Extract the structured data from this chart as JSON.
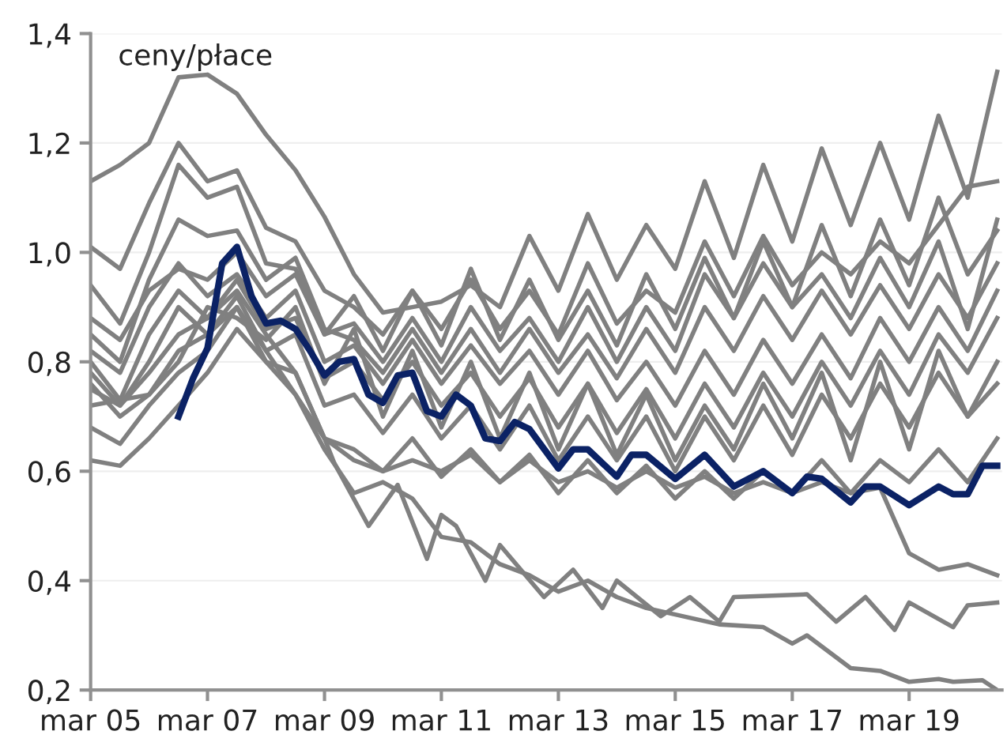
{
  "chart_data": {
    "type": "line",
    "ylabel": "ceny/płace",
    "x": [
      "2005-03",
      "2005-09",
      "2006-03",
      "2006-09",
      "2007-03",
      "2007-09",
      "2008-03",
      "2008-09",
      "2009-03",
      "2009-09",
      "2010-03",
      "2010-09",
      "2011-03",
      "2011-09",
      "2012-03",
      "2012-09",
      "2013-03",
      "2013-09",
      "2014-03",
      "2014-09",
      "2015-03",
      "2015-09",
      "2016-03",
      "2016-09",
      "2017-03",
      "2017-09",
      "2018-03",
      "2018-09",
      "2019-03",
      "2019-09",
      "2020-03",
      "2020-09"
    ],
    "series": [
      {
        "color": "#808080",
        "values": [
          1.13,
          1.16,
          1.2,
          1.32,
          1.325,
          1.29,
          1.215,
          1.15,
          1.065,
          0.96,
          0.89,
          0.9,
          0.91,
          0.94,
          0.9,
          1.03,
          0.93,
          1.07,
          0.95,
          1.05,
          0.97,
          1.13,
          0.99,
          1.16,
          1.02,
          1.19,
          1.05,
          1.2,
          1.06,
          1.25,
          1.1,
          1.33
        ]
      },
      {
        "color": "#808080",
        "values": [
          1.01,
          0.97,
          1.09,
          1.2,
          1.13,
          1.15,
          1.045,
          1.02,
          0.93,
          0.9,
          0.85,
          0.93,
          0.86,
          0.95,
          0.86,
          0.93,
          0.85,
          0.98,
          0.87,
          0.93,
          0.89,
          1.02,
          0.92,
          1.03,
          0.94,
          1.0,
          0.96,
          1.02,
          0.98,
          1.05,
          1.12,
          1.13
        ]
      },
      {
        "color": "#808080",
        "values": [
          0.94,
          0.87,
          1.0,
          1.16,
          1.1,
          1.12,
          0.98,
          0.97,
          0.85,
          0.87,
          0.8,
          0.88,
          0.8,
          0.9,
          0.82,
          0.88,
          0.8,
          0.9,
          0.8,
          0.9,
          0.82,
          0.96,
          0.88,
          0.98,
          0.9,
          0.96,
          0.88,
          0.99,
          0.9,
          1.02,
          0.86,
          1.06
        ]
      },
      {
        "color": "#808080",
        "values": [
          0.85,
          0.8,
          0.95,
          1.06,
          1.03,
          1.04,
          0.95,
          0.99,
          0.86,
          0.84,
          0.78,
          0.86,
          0.78,
          0.86,
          0.78,
          0.86,
          0.78,
          0.85,
          0.77,
          0.86,
          0.78,
          0.9,
          0.82,
          0.92,
          0.84,
          0.93,
          0.85,
          0.94,
          0.86,
          0.96,
          0.88,
          0.98
        ]
      },
      {
        "color": "#808080",
        "values": [
          0.82,
          0.78,
          0.9,
          0.98,
          0.92,
          0.96,
          0.88,
          0.93,
          0.8,
          0.83,
          0.76,
          0.84,
          0.76,
          0.83,
          0.76,
          0.82,
          0.74,
          0.82,
          0.73,
          0.8,
          0.72,
          0.82,
          0.74,
          0.84,
          0.76,
          0.85,
          0.77,
          0.88,
          0.8,
          0.9,
          0.82,
          0.93
        ]
      },
      {
        "color": "#808080",
        "values": [
          0.8,
          0.73,
          0.85,
          0.93,
          0.88,
          0.95,
          0.86,
          0.88,
          0.77,
          0.8,
          0.73,
          0.8,
          0.72,
          0.78,
          0.7,
          0.77,
          0.68,
          0.76,
          0.67,
          0.75,
          0.66,
          0.76,
          0.68,
          0.78,
          0.7,
          0.8,
          0.72,
          0.82,
          0.74,
          0.85,
          0.78,
          0.88
        ]
      },
      {
        "color": "#808080",
        "values": [
          0.78,
          0.72,
          0.8,
          0.9,
          0.85,
          0.92,
          0.82,
          0.85,
          0.72,
          0.74,
          0.67,
          0.74,
          0.66,
          0.72,
          0.64,
          0.72,
          0.62,
          0.7,
          0.62,
          0.7,
          0.6,
          0.7,
          0.62,
          0.72,
          0.63,
          0.74,
          0.66,
          0.76,
          0.68,
          0.78,
          0.7,
          0.8
        ]
      },
      {
        "color": "#808080",
        "values": [
          0.68,
          0.65,
          0.72,
          0.78,
          0.82,
          0.9,
          0.8,
          0.78,
          0.66,
          0.64,
          0.6,
          0.66,
          0.59,
          0.64,
          0.58,
          0.63,
          0.56,
          0.62,
          0.56,
          0.61,
          0.55,
          0.6,
          0.55,
          0.6,
          0.56,
          0.62,
          0.56,
          0.62,
          0.58,
          0.64,
          0.58,
          0.66
        ]
      },
      {
        "color": "#808080",
        "values": [
          0.62,
          0.61,
          0.66,
          0.72,
          0.78,
          0.86,
          0.8,
          0.74,
          0.66,
          0.62,
          0.6,
          0.62,
          0.6,
          0.63,
          0.58,
          0.62,
          0.58,
          0.6,
          0.57,
          0.6,
          0.57,
          0.59,
          0.56,
          0.58,
          0.56,
          0.58,
          0.56,
          0.57,
          0.45,
          0.42,
          0.43,
          0.41
        ]
      },
      {
        "color": "#808080",
        "values": [
          0.88,
          0.84,
          0.93,
          0.97,
          0.95,
          1.0,
          0.92,
          0.96,
          0.85,
          0.92,
          0.82,
          0.93,
          0.83,
          0.97,
          0.84,
          0.95,
          0.84,
          0.93,
          0.83,
          0.96,
          0.86,
          0.99,
          0.88,
          1.02,
          0.9,
          1.05,
          0.92,
          1.06,
          0.94,
          1.1,
          0.96,
          1.04
        ]
      },
      {
        "color": "#808080",
        "values": [
          0.76,
          0.7,
          0.74,
          0.8,
          0.9,
          0.88,
          0.84,
          0.9,
          0.76,
          0.86,
          0.7,
          0.82,
          0.68,
          0.8,
          0.66,
          0.78,
          0.64,
          0.76,
          0.63,
          0.74,
          0.62,
          0.72,
          0.64,
          0.76,
          0.66,
          0.78,
          0.62,
          0.8,
          0.64,
          0.82,
          0.7,
          0.76
        ]
      },
      {
        "color": "#808080",
        "x": [
          "2005-03",
          "2005-09",
          "2006-03",
          "2006-09",
          "2007-03",
          "2007-09",
          "2008-03",
          "2008-09",
          "2009-03",
          "2009-05",
          "2009-12",
          "2010-06",
          "2010-12",
          "2011-03",
          "2011-06",
          "2011-12",
          "2012-03",
          "2012-12",
          "2013-06",
          "2013-12",
          "2014-03",
          "2014-12",
          "2015-06",
          "2015-12",
          "2016-03",
          "2017-06",
          "2017-12",
          "2018-06",
          "2018-12",
          "2019-03",
          "2019-12",
          "2020-03",
          "2020-09"
        ],
        "values": [
          0.75,
          0.72,
          0.78,
          0.85,
          0.88,
          0.93,
          0.85,
          0.78,
          0.66,
          0.615,
          0.5,
          0.575,
          0.44,
          0.52,
          0.5,
          0.4,
          0.465,
          0.37,
          0.42,
          0.35,
          0.4,
          0.335,
          0.37,
          0.325,
          0.37,
          0.375,
          0.325,
          0.37,
          0.31,
          0.36,
          0.315,
          0.355,
          0.36
        ]
      },
      {
        "color": "#808080",
        "x": [
          "2005-03",
          "2006-03",
          "2006-09",
          "2007-03",
          "2007-09",
          "2008-03",
          "2008-09",
          "2009-03",
          "2009-09",
          "2010-03",
          "2010-09",
          "2011-03",
          "2011-09",
          "2012-03",
          "2012-09",
          "2013-03",
          "2013-09",
          "2014-03",
          "2014-09",
          "2015-12",
          "2016-09",
          "2017-03",
          "2017-06",
          "2018-03",
          "2018-09",
          "2019-03",
          "2019-09",
          "2019-12",
          "2020-06",
          "2020-09"
        ],
        "values": [
          0.72,
          0.74,
          0.82,
          0.85,
          0.9,
          0.82,
          0.74,
          0.64,
          0.56,
          0.58,
          0.55,
          0.48,
          0.47,
          0.43,
          0.41,
          0.38,
          0.4,
          0.37,
          0.35,
          0.32,
          0.315,
          0.285,
          0.3,
          0.24,
          0.235,
          0.215,
          0.22,
          0.215,
          0.218,
          0.2
        ]
      },
      {
        "color": "#0b2265",
        "x": [
          "2006-09",
          "2006-12",
          "2007-03",
          "2007-06",
          "2007-09",
          "2007-12",
          "2008-03",
          "2008-06",
          "2008-09",
          "2008-12",
          "2009-03",
          "2009-06",
          "2009-09",
          "2009-12",
          "2010-03",
          "2010-06",
          "2010-09",
          "2010-12",
          "2011-03",
          "2011-06",
          "2011-09",
          "2011-12",
          "2012-03",
          "2012-06",
          "2012-09",
          "2013-03",
          "2013-06",
          "2013-09",
          "2014-03",
          "2014-06",
          "2014-09",
          "2015-03",
          "2015-09",
          "2016-03",
          "2016-09",
          "2017-03",
          "2017-06",
          "2017-09",
          "2018-03",
          "2018-06",
          "2018-09",
          "2019-03",
          "2019-09",
          "2019-12",
          "2020-03",
          "2020-06",
          "2020-09"
        ],
        "values": [
          0.7,
          0.77,
          0.825,
          0.98,
          1.01,
          0.92,
          0.87,
          0.875,
          0.86,
          0.82,
          0.775,
          0.8,
          0.805,
          0.74,
          0.725,
          0.775,
          0.78,
          0.71,
          0.7,
          0.74,
          0.72,
          0.66,
          0.655,
          0.69,
          0.677,
          0.605,
          0.64,
          0.64,
          0.59,
          0.63,
          0.63,
          0.586,
          0.63,
          0.572,
          0.6,
          0.56,
          0.59,
          0.586,
          0.543,
          0.572,
          0.572,
          0.538,
          0.572,
          0.558,
          0.558,
          0.61,
          0.61
        ]
      }
    ],
    "xlim": [
      "2005-03",
      "2020-10"
    ],
    "xticks": [
      {
        "value": "2005-03",
        "label": "mar 05"
      },
      {
        "value": "2007-03",
        "label": "mar 07"
      },
      {
        "value": "2009-03",
        "label": "mar 09"
      },
      {
        "value": "2011-03",
        "label": "mar 11"
      },
      {
        "value": "2013-03",
        "label": "mar 13"
      },
      {
        "value": "2015-03",
        "label": "mar 15"
      },
      {
        "value": "2017-03",
        "label": "mar 17"
      },
      {
        "value": "2019-03",
        "label": "mar 19"
      }
    ],
    "ylim": [
      0.2,
      1.4
    ],
    "yticks": [
      {
        "value": 0.2,
        "label": "0,2"
      },
      {
        "value": 0.4,
        "label": "0,4"
      },
      {
        "value": 0.6,
        "label": "0,6"
      },
      {
        "value": 0.8,
        "label": "0,8"
      },
      {
        "value": 1.0,
        "label": "1,0"
      },
      {
        "value": 1.2,
        "label": "1,2"
      },
      {
        "value": 1.4,
        "label": "1,4"
      }
    ],
    "grid": "y",
    "marker": "none",
    "line_style": "solid"
  }
}
